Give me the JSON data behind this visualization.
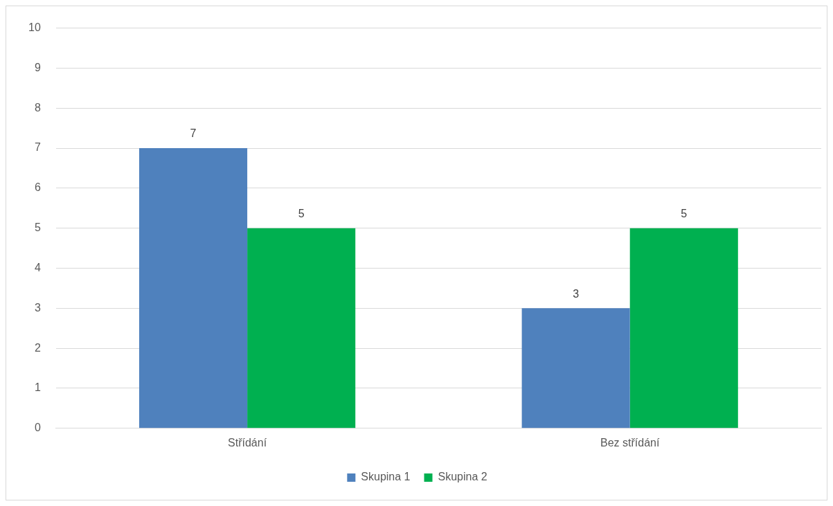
{
  "chart_data": {
    "type": "bar",
    "categories": [
      "Střídání",
      "Bez střídání"
    ],
    "series": [
      {
        "name": "Skupina 1",
        "color": "#4f81bd",
        "values": [
          7,
          3
        ]
      },
      {
        "name": "Skupina 2",
        "color": "#00b050",
        "values": [
          5,
          5
        ]
      }
    ],
    "ylim": [
      0,
      10
    ],
    "yticks": [
      0,
      1,
      2,
      3,
      4,
      5,
      6,
      7,
      8,
      9,
      10
    ],
    "grid": "y",
    "legend": "bottom",
    "data_labels": true
  }
}
